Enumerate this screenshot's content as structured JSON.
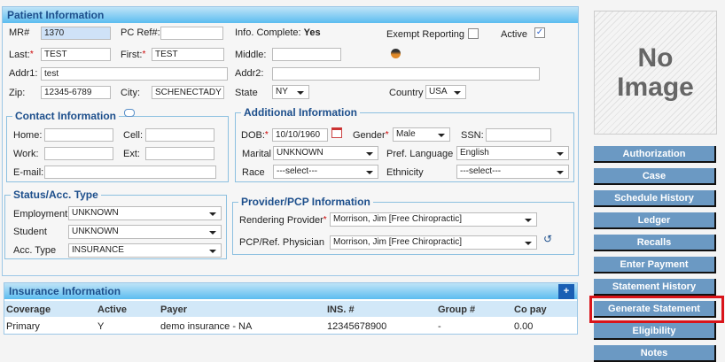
{
  "patient": {
    "title": "Patient Information",
    "mr_label": "MR#",
    "mr": "1370",
    "pcref_label": "PC Ref#:",
    "pcref": "",
    "info_label": "Info. Complete:",
    "info_value": "Yes",
    "exempt_label": "Exempt Reporting",
    "exempt_checked": false,
    "active_label": "Active",
    "active_checked": true,
    "last_label": "Last:",
    "last": "TEST",
    "first_label": "First:",
    "first": "TEST",
    "middle_label": "Middle:",
    "middle": "",
    "addr1_label": "Addr1:",
    "addr1": "test",
    "addr2_label": "Addr2:",
    "addr2": "",
    "zip_label": "Zip:",
    "zip": "12345-6789",
    "city_label": "City:",
    "city": "SCHENECTADY",
    "state_label": "State",
    "state": "NY",
    "country_label": "Country",
    "country": "USA"
  },
  "contact": {
    "title": "Contact Information",
    "home_label": "Home:",
    "cell_label": "Cell:",
    "work_label": "Work:",
    "ext_label": "Ext:",
    "email_label": "E-mail:"
  },
  "additional": {
    "title": "Additional Information",
    "dob_label": "DOB:",
    "dob": "10/10/1960",
    "gender_label": "Gender",
    "gender": "Male",
    "ssn_label": "SSN:",
    "marital_label": "Marital",
    "marital": "UNKNOWN",
    "lang_label": "Pref. Language",
    "lang": "English",
    "race_label": "Race",
    "race": "---select---",
    "ethnicity_label": "Ethnicity",
    "ethnicity": "---select---"
  },
  "status": {
    "title": "Status/Acc. Type",
    "employment_label": "Employment",
    "employment": "UNKNOWN",
    "student_label": "Student",
    "student": "UNKNOWN",
    "acctype_label": "Acc. Type",
    "acctype": "INSURANCE"
  },
  "provider": {
    "title": "Provider/PCP Information",
    "rendering_label": "Rendering Provider",
    "rendering": "Morrison, Jim [Free Chiropractic]",
    "pcp_label": "PCP/Ref. Physician",
    "pcp": "Morrison, Jim [Free Chiropractic]"
  },
  "insurance": {
    "title": "Insurance Information",
    "add": "+",
    "columns": [
      "Coverage",
      "Active",
      "Payer",
      "INS. #",
      "Group #",
      "Co pay"
    ],
    "rows": [
      [
        "Primary",
        "Y",
        "demo insurance - NA",
        "12345678900",
        "-",
        "0.00"
      ]
    ]
  },
  "photo": {
    "line1": "No",
    "line2": "Image"
  },
  "buttons": [
    "Authorization",
    "Case",
    "Schedule History",
    "Ledger",
    "Recalls",
    "Enter Payment",
    "Statement History",
    "Generate Statement",
    "Eligibility",
    "Notes"
  ],
  "highlight": {
    "button": "Generate Statement",
    "color": "#d9141a"
  }
}
